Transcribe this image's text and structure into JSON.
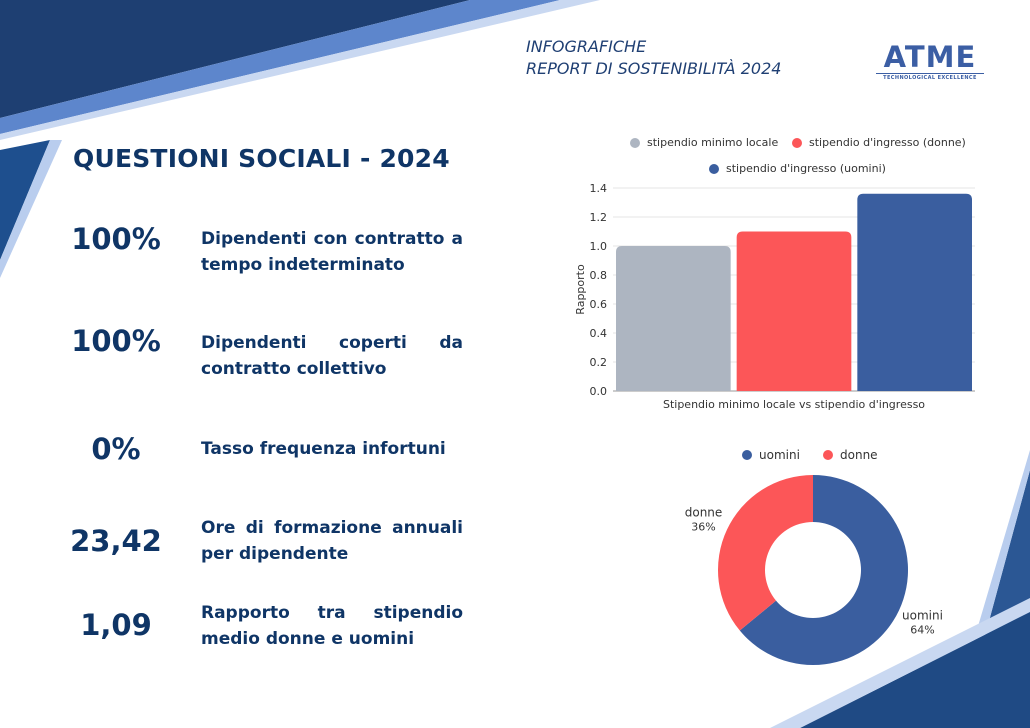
{
  "header": {
    "line1": "INFOGRAFICHE",
    "line2": "REPORT DI SOSTENIBILITÀ 2024"
  },
  "logo": {
    "name": "ATME",
    "tagline": "TECHNOLOGICAL EXCELLENCE"
  },
  "section": {
    "title": "QUESTIONI SOCIALI - 2024"
  },
  "stats": [
    {
      "value": "100%",
      "label": "Dipendenti con contratto a tempo indeterminato"
    },
    {
      "value": "100%",
      "label": "Dipendenti coperti da contratto collettivo"
    },
    {
      "value": "0%",
      "label": "Tasso frequenza infortuni"
    },
    {
      "value": "23,42",
      "label": "Ore di formazione annuali per dipendente"
    },
    {
      "value": "1,09",
      "label": "Rapporto tra stipendio medio donne e uomini"
    }
  ],
  "colors": {
    "navy": "#0f3566",
    "gray_bar": "#adb5c1",
    "red": "#fc5658",
    "blue": "#3a5e9f"
  },
  "chart_data": [
    {
      "type": "bar",
      "xlabel": "Stipendio minimo locale vs stipendio d'ingresso",
      "ylabel": "Rapporto",
      "ylim": [
        0,
        1.4
      ],
      "yticks": [
        "0.0",
        "0.2",
        "0.4",
        "0.6",
        "0.8",
        "1.0",
        "1.2",
        "1.4"
      ],
      "grid": true,
      "legend_position": "top",
      "series": [
        {
          "name": "stipendio minimo locale",
          "values": [
            1.0
          ],
          "color": "#adb5c1"
        },
        {
          "name": "stipendio d'ingresso (donne)",
          "values": [
            1.1
          ],
          "color": "#fc5658"
        },
        {
          "name": "stipendio d'ingresso (uomini)",
          "values": [
            1.36
          ],
          "color": "#3a5e9f"
        }
      ]
    },
    {
      "type": "pie",
      "style": "donut",
      "legend_position": "top",
      "slices": [
        {
          "name": "uomini",
          "value": 64,
          "label": "64%",
          "color": "#3a5e9f"
        },
        {
          "name": "donne",
          "value": 36,
          "label": "36%",
          "color": "#fc5658"
        }
      ]
    }
  ]
}
